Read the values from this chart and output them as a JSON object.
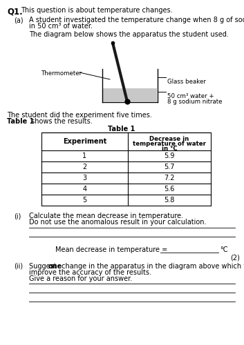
{
  "background_color": "#ffffff",
  "q_number": "Q1.",
  "intro_text": "This question is about temperature changes.",
  "part_a_label": "(a)",
  "part_a_line1": "A student investigated the temperature change when 8 g of sodium nitrate dissolves",
  "part_a_line2": "in 50 cm³ of water.",
  "diagram_caption": "The diagram below shows the apparatus the student used.",
  "thermometer_label": "Thermometer",
  "glass_beaker_label": "Glass beaker",
  "water_label_line1": "50 cm³ water +",
  "water_label_line2": "8 g sodium nitrate",
  "experiment_line1": "The student did the experiment five times.",
  "experiment_line2_bold": "Table 1",
  "experiment_line2_rest": " shows the results.",
  "table_title": "Table 1",
  "table_headers": [
    "Experiment",
    "Decrease in\ntemperature of water\nin °C"
  ],
  "table_data": [
    [
      "1",
      "5.9"
    ],
    [
      "2",
      "5.7"
    ],
    [
      "3",
      "7.2"
    ],
    [
      "4",
      "5.6"
    ],
    [
      "5",
      "5.8"
    ]
  ],
  "part_i_label": "(i)",
  "part_i_line1": "Calculate the mean decrease in temperature.",
  "part_i_line2": "Do not use the anomalous result in your calculation.",
  "mean_label": "Mean decrease in temperature = ",
  "unit_label": "°C",
  "marks_label": "(2)",
  "part_ii_label": "(ii)",
  "part_ii_line1_pre": "Suggest ",
  "part_ii_line1_bold": "one",
  "part_ii_line1_post": " change in the apparatus in the diagram above which would",
  "part_ii_line2": "improve the accuracy of the results.",
  "part_ii_line3": "Give a reason for your answer."
}
